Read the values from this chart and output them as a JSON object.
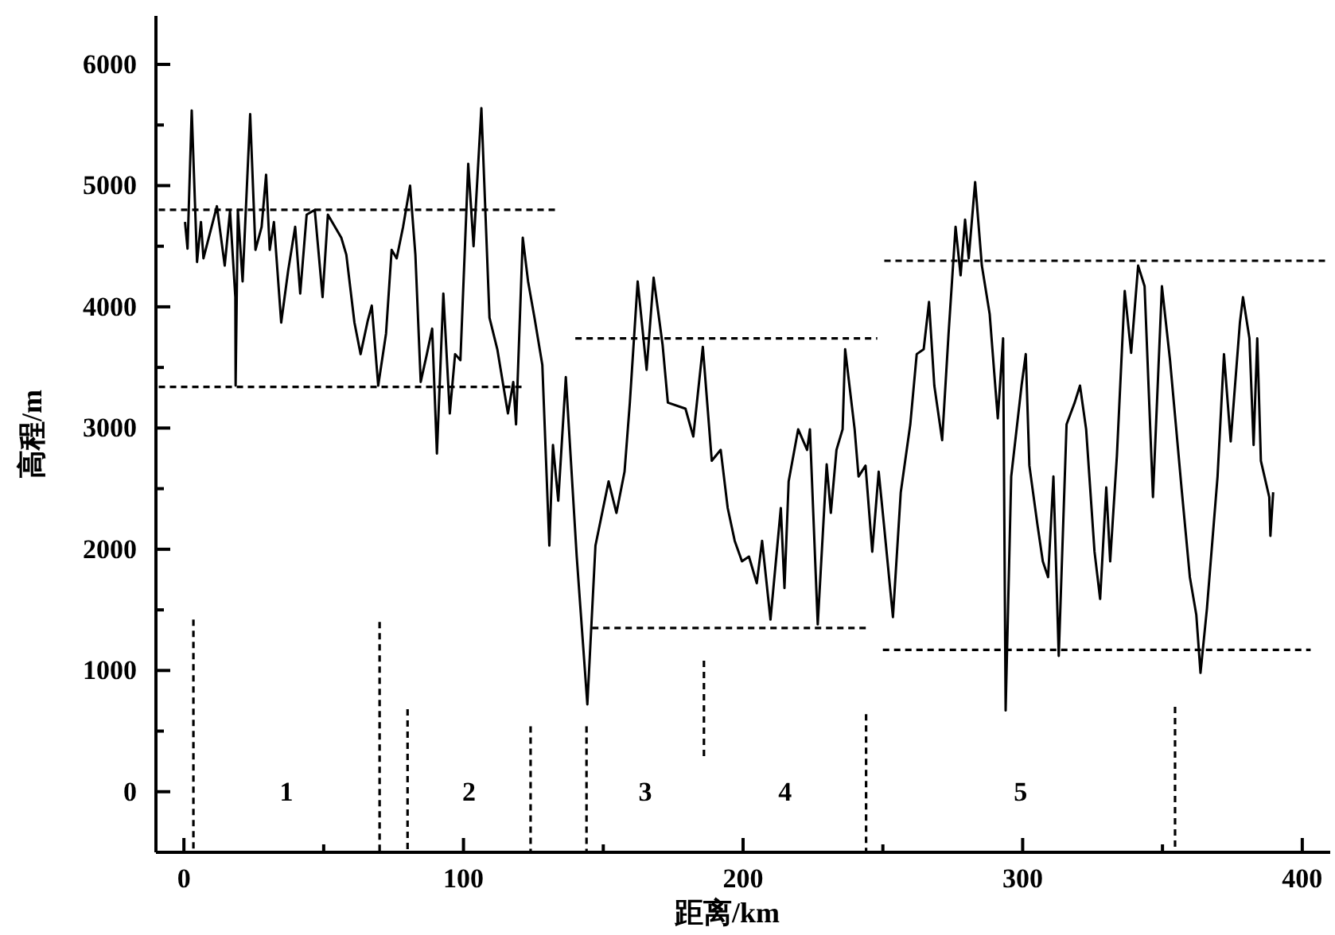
{
  "chart_data": {
    "type": "line",
    "xlabel": "距离/km",
    "ylabel": "高程/m",
    "xlim": [
      -10,
      410
    ],
    "ylim": [
      -500,
      6400
    ],
    "xticks": [
      0,
      {
        "value": 50,
        "label": null
      },
      100,
      {
        "value": 150,
        "label": null
      },
      200,
      {
        "value": 250,
        "label": null
      },
      300,
      {
        "value": 350,
        "label": null
      },
      400
    ],
    "yticks": [
      {
        "value": -500,
        "label": null
      },
      0,
      {
        "value": 500,
        "label": null
      },
      1000,
      {
        "value": 1500,
        "label": null
      },
      2000,
      {
        "value": 2500,
        "label": null
      },
      3000,
      {
        "value": 3500,
        "label": null
      },
      4000,
      {
        "value": 4500,
        "label": null
      },
      5000,
      {
        "value": 5500,
        "label": null
      },
      6000
    ],
    "series": [
      {
        "color": "#000000",
        "line_style": "solid",
        "x": [
          0.4,
          1.3,
          2.8,
          4.7,
          6.1,
          7.0,
          11.8,
          14.6,
          16.5,
          18.4,
          18.5,
          19.3,
          21.0,
          23.7,
          25.6,
          27.8,
          29.4,
          30.7,
          32.2,
          34.8,
          37.3,
          39.8,
          41.6,
          43.9,
          46.8,
          49.6,
          51.5,
          56.3,
          58.1,
          61.0,
          63.2,
          65.7,
          67.2,
          69.5,
          72.3,
          74.3,
          76.1,
          78.4,
          80.9,
          82.8,
          84.7,
          86.9,
          88.8,
          90.5,
          92.8,
          95.1,
          97.0,
          98.9,
          101.7,
          103.6,
          106.4,
          109.3,
          112.1,
          115.9,
          117.8,
          118.8,
          121.2,
          123.1,
          125.4,
          128.2,
          130.7,
          132.0,
          133.9,
          136.6,
          140.5,
          144.3,
          147.2,
          151.9,
          154.7,
          157.6,
          159.5,
          162.3,
          165.5,
          168.0,
          171.2,
          173.1,
          179.4,
          182.2,
          185.6,
          188.8,
          192.0,
          194.5,
          197.0,
          199.6,
          202.1,
          204.9,
          206.8,
          209.8,
          213.5,
          214.8,
          216.3,
          219.7,
          222.9,
          223.9,
          226.7,
          229.9,
          231.4,
          233.4,
          235.6,
          236.5,
          239.9,
          241.3,
          243.8,
          246.2,
          248.5,
          250.4,
          253.6,
          256.4,
          259.8,
          262.1,
          264.6,
          266.5,
          268.4,
          271.2,
          273.5,
          276.0,
          277.8,
          279.4,
          280.7,
          283.0,
          285.4,
          288.2,
          291.1,
          293.0,
          293.9,
          295.9,
          299.6,
          301.1,
          302.4,
          305.3,
          307.2,
          309.1,
          311.0,
          312.9,
          315.7,
          318.6,
          320.5,
          322.7,
          325.7,
          327.7,
          329.9,
          331.3,
          333.7,
          336.5,
          338.8,
          341.3,
          343.6,
          346.6,
          349.8,
          352.7,
          354.5,
          356.8,
          359.8,
          362.1,
          363.6,
          365.9,
          369.7,
          372.0,
          374.4,
          377.7,
          378.8,
          381.1,
          382.6,
          383.9,
          385.2,
          388.2,
          388.6,
          389.6
        ],
        "values": [
          4700,
          4480,
          5620,
          4370,
          4700,
          4400,
          4830,
          4340,
          4790,
          4080,
          3350,
          4800,
          4210,
          5590,
          4470,
          4660,
          5090,
          4470,
          4700,
          3870,
          4300,
          4660,
          4110,
          4760,
          4800,
          4080,
          4760,
          4570,
          4430,
          3870,
          3610,
          3880,
          4010,
          3350,
          3780,
          4470,
          4400,
          4660,
          5000,
          4430,
          3380,
          3610,
          3820,
          2790,
          4110,
          3120,
          3610,
          3560,
          5180,
          4500,
          5640,
          3910,
          3650,
          3120,
          3380,
          3030,
          4570,
          4210,
          3910,
          3520,
          2030,
          2860,
          2400,
          3420,
          1940,
          720,
          2030,
          2560,
          2300,
          2640,
          3210,
          4210,
          3480,
          4240,
          3690,
          3210,
          3160,
          2930,
          3670,
          2730,
          2820,
          2340,
          2070,
          1900,
          1940,
          1720,
          2070,
          1420,
          2340,
          1680,
          2560,
          2990,
          2820,
          2990,
          1380,
          2700,
          2300,
          2820,
          2990,
          3650,
          2990,
          2600,
          2690,
          1980,
          2640,
          2200,
          1440,
          2470,
          3030,
          3610,
          3650,
          4040,
          3350,
          2900,
          3780,
          4660,
          4260,
          4720,
          4400,
          5030,
          4340,
          3940,
          3080,
          3740,
          670,
          2600,
          3350,
          3610,
          2690,
          2200,
          1900,
          1770,
          2600,
          1120,
          3030,
          3210,
          3350,
          2990,
          1980,
          1590,
          2510,
          1900,
          2770,
          4130,
          3620,
          4340,
          4170,
          2430,
          4170,
          3560,
          3100,
          2510,
          1770,
          1460,
          980,
          1510,
          2600,
          3610,
          2890,
          3870,
          4080,
          3740,
          2860,
          3740,
          2730,
          2430,
          2110,
          2470
        ]
      },
      {
        "color": "#000000",
        "line_style": "dashed",
        "x": [
          -9,
          133
        ],
        "values": [
          4800,
          4800
        ]
      },
      {
        "color": "#000000",
        "line_style": "dashed",
        "x": [
          -9,
          122
        ],
        "values": [
          3340,
          3340
        ]
      },
      {
        "color": "#000000",
        "line_style": "dashed",
        "x": [
          140,
          248
        ],
        "values": [
          3740,
          3740
        ]
      },
      {
        "color": "#000000",
        "line_style": "dashed",
        "x": [
          146,
          245
        ],
        "values": [
          1350,
          1350
        ]
      },
      {
        "color": "#000000",
        "line_style": "dashed",
        "x": [
          250.5,
          409
        ],
        "values": [
          4380,
          4380
        ]
      },
      {
        "color": "#000000",
        "line_style": "dashed",
        "x": [
          250,
          403
        ],
        "values": [
          1170,
          1170
        ]
      },
      {
        "color": "#000000",
        "line_style": "dashed",
        "x": [
          3.4,
          3.4
        ],
        "values": [
          1420,
          -500
        ]
      },
      {
        "color": "#000000",
        "line_style": "dashed",
        "x": [
          70,
          70
        ],
        "values": [
          1400,
          -500
        ]
      },
      {
        "color": "#000000",
        "line_style": "dashed",
        "x": [
          80,
          80
        ],
        "values": [
          680,
          -500
        ]
      },
      {
        "color": "#000000",
        "line_style": "dashed",
        "x": [
          124,
          124
        ],
        "values": [
          540,
          -500
        ]
      },
      {
        "color": "#000000",
        "line_style": "dashed",
        "x": [
          144,
          144
        ],
        "values": [
          540,
          -500
        ]
      },
      {
        "color": "#000000",
        "line_style": "dashed",
        "x": [
          186,
          186
        ],
        "values": [
          1080,
          290
        ]
      },
      {
        "color": "#000000",
        "line_style": "dashed",
        "x": [
          244,
          244
        ],
        "values": [
          640,
          -500
        ]
      },
      {
        "color": "#000000",
        "line_style": "dashed",
        "x": [
          354.5,
          354.5
        ],
        "values": [
          700,
          -500
        ]
      }
    ],
    "annotations": [
      "1",
      "2",
      "3",
      "4",
      "5"
    ]
  }
}
